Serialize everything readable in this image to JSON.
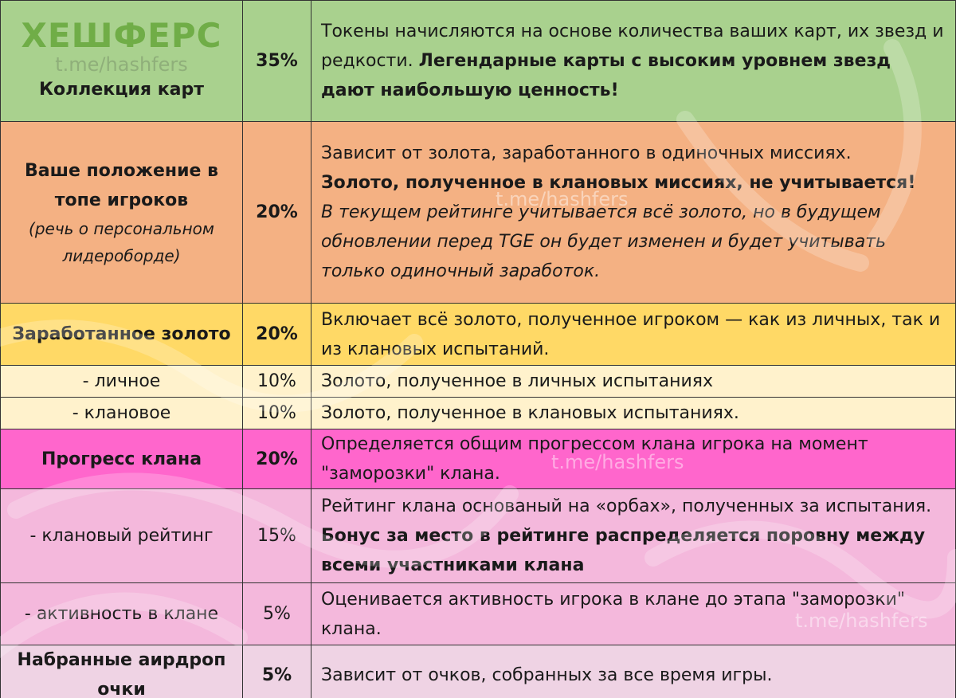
{
  "logo": {
    "title": "ХЕШФЕРС",
    "subtitle": "t.me/hashfers"
  },
  "watermarks": [
    "t.me/hashfers",
    "t.me/hashfers",
    "t.me/hashfers"
  ],
  "rows": {
    "cards": {
      "name": "Коллекция карт",
      "percent": "35%",
      "desc": "Токены начисляются на основе количества ваших карт, их звезд и редкости. ",
      "desc_bold": "Легендарные карты с высоким уровнем звезд дают наибольшую ценность!"
    },
    "top": {
      "name": "Ваше положение в топе игроков",
      "note": "(речь о персональном лидероборде)",
      "percent": "20%",
      "desc": "Зависит от золота, заработанного в одиночных миссиях.",
      "desc_bold": "Золото, полученное в клановых миссиях, не учитывается!",
      "desc_italic": "В текущем рейтинге учитывается всё золото, но в будущем обновлении перед TGE он будет изменен и будет учитывать только одиночный заработок."
    },
    "gold": {
      "name": "Заработанное золото",
      "percent": "20%",
      "desc": "Включает всё золото, полученное игроком — как из личных, так и из клановых испытаний."
    },
    "gold_personal": {
      "name": "- личное",
      "percent": "10%",
      "desc": "Золото, полученное в личных испытаниях"
    },
    "gold_clan": {
      "name": "- клановое",
      "percent": "10%",
      "desc": "Золото, полученное в клановых испытаниях."
    },
    "clan_progress": {
      "name": "Прогресс клана",
      "percent": "20%",
      "desc": "Определяется общим прогрессом клана игрока на момент \"заморозки\" клана."
    },
    "clan_rating": {
      "name": "- клановый рейтинг",
      "percent": "15%",
      "desc": "Рейтинг клана основаный на «орбах», полученных за испытания. ",
      "desc_bold": "Бонус за место в рейтинге распределяется поровну между всеми участниками клана"
    },
    "clan_activity": {
      "name": "- активность в клане",
      "percent": "5%",
      "desc": "Оценивается активность игрока в клане до этапа \"заморозки\" клана."
    },
    "airdrop": {
      "name": "Набранные аирдроп очки",
      "percent": "5%",
      "desc": "Зависит от очков, собранных за все время игры."
    }
  },
  "colors": {
    "green": "#a9d18e",
    "orange": "#f4b183",
    "yellow": "#ffd966",
    "light_yellow": "#fff2cc",
    "magenta": "#ff66cc",
    "pink": "#f4b8dc",
    "light_pink": "#efd3e4",
    "logo_green": "#70ad47"
  }
}
